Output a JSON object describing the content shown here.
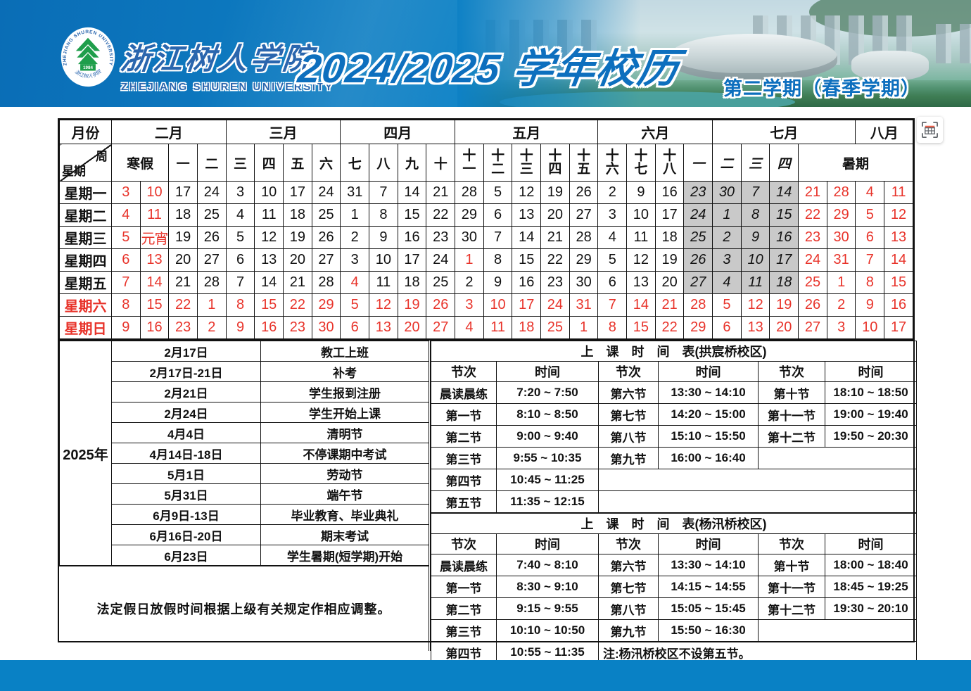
{
  "header": {
    "logo": {
      "name": "浙江树人学院",
      "name_en": "ZHEJIANG SHUREN UNIVERSITY",
      "ring_text": "ZHEJIANG SHUREN UNIVERSITY",
      "year": "1984",
      "ring_bottom": "浙江树人学院"
    },
    "title": "2024/2025 学年校历",
    "semester": "第二学期（春季学期）"
  },
  "calendar": {
    "corner": {
      "month_label": "月份",
      "week_label": "周",
      "day_label": "星期"
    },
    "months": [
      {
        "label": "二月",
        "span": 4
      },
      {
        "label": "三月",
        "span": 4
      },
      {
        "label": "四月",
        "span": 4
      },
      {
        "label": "五月",
        "span": 5
      },
      {
        "label": "六月",
        "span": 4
      },
      {
        "label": "七月",
        "span": 5
      },
      {
        "label": "八月",
        "span": 2
      }
    ],
    "weeks": [
      {
        "label": "寒假",
        "span": 2
      },
      {
        "label": "一"
      },
      {
        "label": "二"
      },
      {
        "label": "三"
      },
      {
        "label": "四"
      },
      {
        "label": "五"
      },
      {
        "label": "六"
      },
      {
        "label": "七"
      },
      {
        "label": "八"
      },
      {
        "label": "九"
      },
      {
        "label": "十"
      },
      {
        "label": "十一"
      },
      {
        "label": "十二"
      },
      {
        "label": "十三"
      },
      {
        "label": "十四"
      },
      {
        "label": "十五"
      },
      {
        "label": "十六"
      },
      {
        "label": "十七"
      },
      {
        "label": "十八"
      },
      {
        "label": "一",
        "italic": true
      },
      {
        "label": "二",
        "italic": true
      },
      {
        "label": "三",
        "italic": true
      },
      {
        "label": "四",
        "italic": true
      },
      {
        "label": "暑期",
        "span": 4
      }
    ],
    "days": [
      {
        "label": "星期一",
        "labelRed": false,
        "values": [
          "3",
          "10",
          "17",
          "24",
          "3",
          "10",
          "17",
          "24",
          "31",
          "7",
          "14",
          "21",
          "28",
          "5",
          "12",
          "19",
          "26",
          "2",
          "9",
          "16",
          "23",
          "30",
          "7",
          "14",
          "21",
          "28",
          "4",
          "11"
        ],
        "red": [
          0,
          1,
          24,
          25,
          26,
          27
        ],
        "gray": [
          20,
          21,
          22,
          23
        ]
      },
      {
        "label": "星期二",
        "labelRed": false,
        "values": [
          "4",
          "11",
          "18",
          "25",
          "4",
          "11",
          "18",
          "25",
          "1",
          "8",
          "15",
          "22",
          "29",
          "6",
          "13",
          "20",
          "27",
          "3",
          "10",
          "17",
          "24",
          "1",
          "8",
          "15",
          "22",
          "29",
          "5",
          "12"
        ],
        "red": [
          0,
          1,
          24,
          25,
          26,
          27
        ],
        "gray": [
          20,
          21,
          22,
          23
        ]
      },
      {
        "label": "星期三",
        "labelRed": false,
        "values": [
          "5",
          "元宵",
          "19",
          "26",
          "5",
          "12",
          "19",
          "26",
          "2",
          "9",
          "16",
          "23",
          "30",
          "7",
          "14",
          "21",
          "28",
          "4",
          "11",
          "18",
          "25",
          "2",
          "9",
          "16",
          "23",
          "30",
          "6",
          "13"
        ],
        "red": [
          0,
          1,
          24,
          25,
          26,
          27
        ],
        "gray": [
          20,
          21,
          22,
          23
        ]
      },
      {
        "label": "星期四",
        "labelRed": false,
        "values": [
          "6",
          "13",
          "20",
          "27",
          "6",
          "13",
          "20",
          "27",
          "3",
          "10",
          "17",
          "24",
          "1",
          "8",
          "15",
          "22",
          "29",
          "5",
          "12",
          "19",
          "26",
          "3",
          "10",
          "17",
          "24",
          "31",
          "7",
          "14"
        ],
        "red": [
          0,
          1,
          12,
          24,
          25,
          26,
          27
        ],
        "gray": [
          20,
          21,
          22,
          23
        ]
      },
      {
        "label": "星期五",
        "labelRed": false,
        "values": [
          "7",
          "14",
          "21",
          "28",
          "7",
          "14",
          "21",
          "28",
          "4",
          "11",
          "18",
          "25",
          "2",
          "9",
          "16",
          "23",
          "30",
          "6",
          "13",
          "20",
          "27",
          "4",
          "11",
          "18",
          "25",
          "1",
          "8",
          "15"
        ],
        "red": [
          0,
          1,
          8,
          24,
          25,
          26,
          27
        ],
        "gray": [
          20,
          21,
          22,
          23
        ]
      },
      {
        "label": "星期六",
        "labelRed": true,
        "redAll": true,
        "values": [
          "8",
          "15",
          "22",
          "1",
          "8",
          "15",
          "22",
          "29",
          "5",
          "12",
          "19",
          "26",
          "3",
          "10",
          "17",
          "24",
          "31",
          "7",
          "14",
          "21",
          "28",
          "5",
          "12",
          "19",
          "26",
          "2",
          "9",
          "16"
        ],
        "red": [],
        "gray": []
      },
      {
        "label": "星期日",
        "labelRed": true,
        "redAll": true,
        "values": [
          "9",
          "16",
          "23",
          "2",
          "9",
          "16",
          "23",
          "30",
          "6",
          "13",
          "20",
          "27",
          "4",
          "11",
          "18",
          "25",
          "1",
          "8",
          "15",
          "22",
          "29",
          "6",
          "13",
          "20",
          "27",
          "3",
          "10",
          "17"
        ],
        "red": [],
        "gray": []
      }
    ]
  },
  "events": {
    "year": "2025年",
    "items": [
      {
        "date": "2月17日",
        "event": "教工上班"
      },
      {
        "date": "2月17日-21日",
        "event": "补考"
      },
      {
        "date": "2月21日",
        "event": "学生报到注册"
      },
      {
        "date": "2月24日",
        "event": "学生开始上课"
      },
      {
        "date": "4月4日",
        "event": "清明节"
      },
      {
        "date": "4月14日-18日",
        "event": "不停课期中考试"
      },
      {
        "date": "5月1日",
        "event": "劳动节"
      },
      {
        "date": "5月31日",
        "event": "端午节"
      },
      {
        "date": "6月9日-13日",
        "event": "毕业教育、毕业典礼"
      },
      {
        "date": "6月16日-20日",
        "event": "期末考试"
      },
      {
        "date": "6月23日",
        "event": "学生暑期(短学期)开始"
      }
    ],
    "note": "法定假日放假时间根据上级有关规定作相应调整。"
  },
  "schedules": [
    {
      "title": "上　课　时　间　表(拱宸桥校区)",
      "headers": [
        "节次",
        "时间",
        "节次",
        "时间",
        "节次",
        "时间"
      ],
      "rows": [
        [
          {
            "t": "晨读晨练"
          },
          {
            "t": "7:20 ~ 7:50"
          },
          {
            "t": "第六节"
          },
          {
            "t": "13:30 ~ 14:10"
          },
          {
            "t": "第十节"
          },
          {
            "t": "18:10 ~ 18:50"
          }
        ],
        [
          {
            "t": "第一节"
          },
          {
            "t": "8:10 ~ 8:50"
          },
          {
            "t": "第七节"
          },
          {
            "t": "14:20 ~ 15:00"
          },
          {
            "t": "第十一节"
          },
          {
            "t": "19:00 ~ 19:40"
          }
        ],
        [
          {
            "t": "第二节"
          },
          {
            "t": "9:00 ~ 9:40"
          },
          {
            "t": "第八节"
          },
          {
            "t": "15:10 ~ 15:50"
          },
          {
            "t": "第十二节"
          },
          {
            "t": "19:50 ~ 20:30"
          }
        ],
        [
          {
            "t": "第三节"
          },
          {
            "t": "9:55 ~ 10:35"
          },
          {
            "t": "第九节"
          },
          {
            "t": "16:00 ~ 16:40"
          },
          {
            "t": "",
            "span": 2
          }
        ],
        [
          {
            "t": "第四节"
          },
          {
            "t": "10:45 ~ 11:25"
          },
          {
            "t": "",
            "span": 4
          }
        ],
        [
          {
            "t": "第五节"
          },
          {
            "t": "11:35 ~ 12:15"
          },
          {
            "t": "",
            "span": 4
          }
        ]
      ]
    },
    {
      "title": "上　课　时　间　表(杨汛桥校区)",
      "headers": [
        "节次",
        "时间",
        "节次",
        "时间",
        "节次",
        "时间"
      ],
      "rows": [
        [
          {
            "t": "晨读晨练"
          },
          {
            "t": "7:40 ~ 8:10"
          },
          {
            "t": "第六节"
          },
          {
            "t": "13:30 ~ 14:10"
          },
          {
            "t": "第十节"
          },
          {
            "t": "18:00 ~ 18:40"
          }
        ],
        [
          {
            "t": "第一节"
          },
          {
            "t": "8:30 ~ 9:10"
          },
          {
            "t": "第七节"
          },
          {
            "t": "14:15 ~ 14:55"
          },
          {
            "t": "第十一节"
          },
          {
            "t": "18:45 ~ 19:25"
          }
        ],
        [
          {
            "t": "第二节"
          },
          {
            "t": "9:15 ~ 9:55"
          },
          {
            "t": "第八节"
          },
          {
            "t": "15:05 ~ 15:45"
          },
          {
            "t": "第十二节"
          },
          {
            "t": "19:30 ~ 20:10"
          }
        ],
        [
          {
            "t": "第三节"
          },
          {
            "t": "10:10 ~ 10:50"
          },
          {
            "t": "第九节"
          },
          {
            "t": "15:50 ~ 16:30"
          },
          {
            "t": "",
            "span": 2
          }
        ],
        [
          {
            "t": "第四节"
          },
          {
            "t": "10:55 ~ 11:35"
          },
          {
            "t": "注:杨汛桥校区不设第五节。",
            "span": 4,
            "align": "left"
          }
        ]
      ]
    }
  ],
  "overlay": {
    "tool_button": "table-extract"
  },
  "colors": {
    "band_blue": "#0981c5",
    "title_blue": "#0d6fbe",
    "red": "#e8332a",
    "gray_cell": "#c9c9c9",
    "logo_green": "#1f9e4b"
  }
}
